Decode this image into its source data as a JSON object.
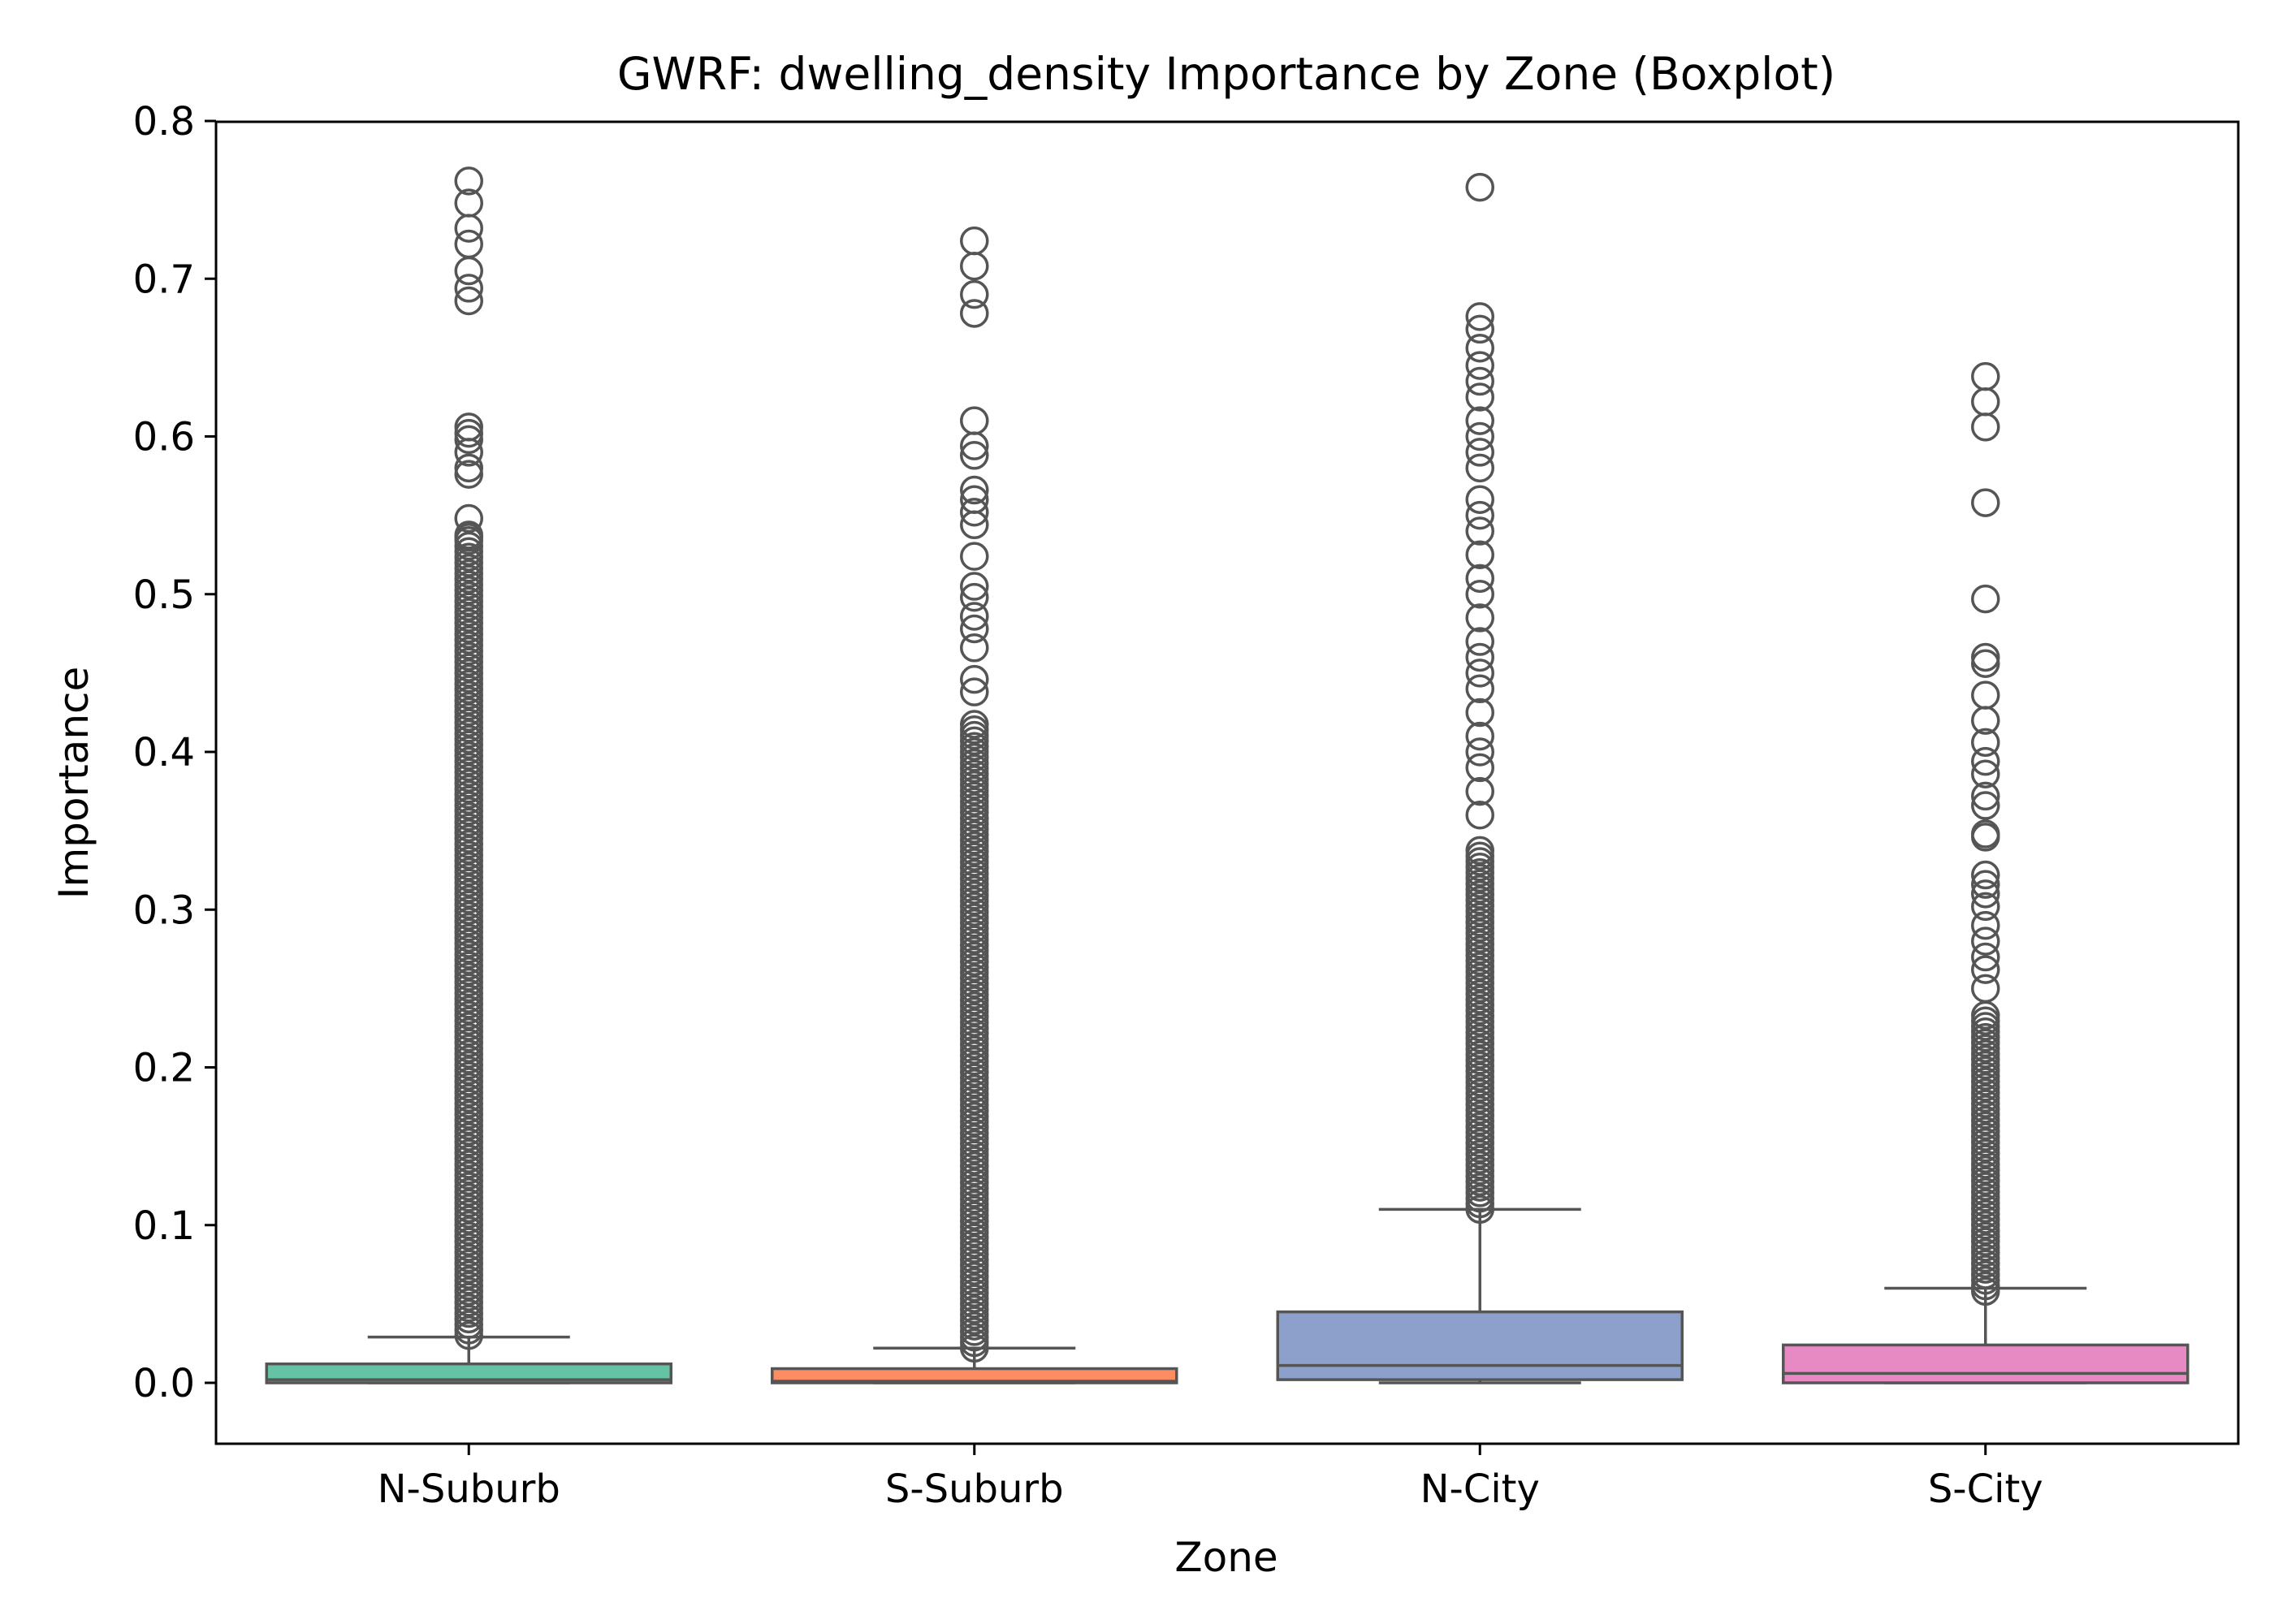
{
  "chart_data": {
    "type": "boxplot",
    "title": "GWRF: dwelling_density Importance by Zone (Boxplot)",
    "xlabel": "Zone",
    "ylabel": "Importance",
    "ylim": [
      -0.038,
      0.8
    ],
    "yticks": [
      0.0,
      0.1,
      0.2,
      0.3,
      0.4,
      0.5,
      0.6,
      0.7,
      0.8
    ],
    "ytick_labels": [
      "0.0",
      "0.1",
      "0.2",
      "0.3",
      "0.4",
      "0.5",
      "0.6",
      "0.7",
      "0.8"
    ],
    "grid": false,
    "categories": [
      "N-Suburb",
      "S-Suburb",
      "N-City",
      "S-City"
    ],
    "colors": {
      "N-Suburb": "#66c2a5",
      "S-Suburb": "#fc8d62",
      "N-City": "#8da0cb",
      "S-City": "#e78ac3",
      "line": "#555555"
    },
    "boxes": [
      {
        "category": "N-Suburb",
        "whisker_low": 0.0,
        "q1": 0.0,
        "median": 0.002,
        "q3": 0.012,
        "whisker_high": 0.029,
        "outlier_range": [
          0.03,
          0.54
        ],
        "outliers": [
          0.762,
          0.748,
          0.732,
          0.722,
          0.705,
          0.694,
          0.686,
          0.606,
          0.602,
          0.598,
          0.59,
          0.58,
          0.576,
          0.548,
          0.536
        ]
      },
      {
        "category": "S-Suburb",
        "whisker_low": 0.0,
        "q1": 0.0,
        "median": 0.001,
        "q3": 0.009,
        "whisker_high": 0.022,
        "outlier_range": [
          0.022,
          0.42
        ],
        "outliers": [
          0.724,
          0.708,
          0.69,
          0.678,
          0.61,
          0.594,
          0.588,
          0.566,
          0.56,
          0.552,
          0.544,
          0.524,
          0.505,
          0.498,
          0.486,
          0.478,
          0.466,
          0.446,
          0.438
        ]
      },
      {
        "category": "N-City",
        "whisker_low": 0.0,
        "q1": 0.002,
        "median": 0.011,
        "q3": 0.045,
        "whisker_high": 0.11,
        "outlier_range": [
          0.11,
          0.34
        ],
        "outliers": [
          0.758,
          0.676,
          0.668,
          0.656,
          0.645,
          0.635,
          0.625,
          0.61,
          0.6,
          0.59,
          0.58,
          0.56,
          0.55,
          0.54,
          0.525,
          0.51,
          0.5,
          0.485,
          0.47,
          0.46,
          0.45,
          0.44,
          0.425,
          0.41,
          0.4,
          0.39,
          0.375,
          0.36
        ]
      },
      {
        "category": "S-City",
        "whisker_low": 0.0,
        "q1": 0.0,
        "median": 0.006,
        "q3": 0.024,
        "whisker_high": 0.06,
        "outlier_range": [
          0.058,
          0.235
        ],
        "outliers": [
          0.638,
          0.622,
          0.606,
          0.558,
          0.497,
          0.46,
          0.456,
          0.436,
          0.42,
          0.406,
          0.394,
          0.386,
          0.372,
          0.366,
          0.348,
          0.346,
          0.322,
          0.316,
          0.31,
          0.302,
          0.29,
          0.28,
          0.27,
          0.262,
          0.25
        ]
      }
    ]
  }
}
